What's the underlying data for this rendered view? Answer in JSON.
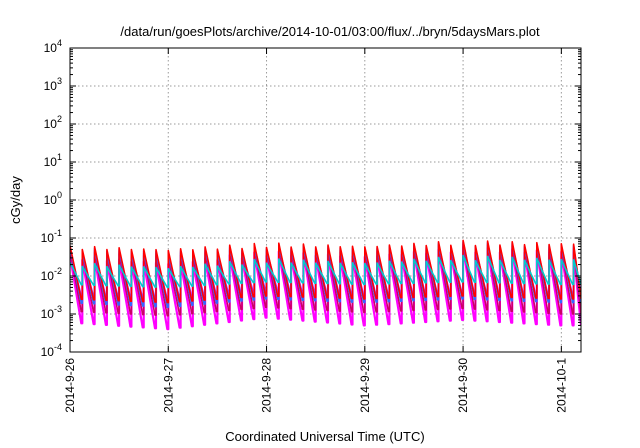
{
  "chart_data": {
    "type": "line",
    "title": "/data/run/goesPlots/archive/2014-10-01/03:00/flux/../bryn/5daysMars.plot",
    "xlabel": "Coordinated Universal Time (UTC)",
    "ylabel": "cGy/day",
    "yscale": "log",
    "ylim": [
      0.0001,
      10000
    ],
    "xlim": [
      "2014-09-26T00:00",
      "2014-10-01T04:48"
    ],
    "grid": true,
    "legend": "none",
    "y_ticks": [
      {
        "base": "10",
        "exp": "-4",
        "value": 0.0001
      },
      {
        "base": "10",
        "exp": "-3",
        "value": 0.001
      },
      {
        "base": "10",
        "exp": "-2",
        "value": 0.01
      },
      {
        "base": "10",
        "exp": "-1",
        "value": 0.1
      },
      {
        "base": "10",
        "exp": "0",
        "value": 1
      },
      {
        "base": "10",
        "exp": "1",
        "value": 10
      },
      {
        "base": "10",
        "exp": "2",
        "value": 100
      },
      {
        "base": "10",
        "exp": "3",
        "value": 1000
      },
      {
        "base": "10",
        "exp": "4",
        "value": 10000
      }
    ],
    "x_ticks": [
      {
        "label": "2014-9-26",
        "value": "2014-09-26T00:00"
      },
      {
        "label": "2014-9-27",
        "value": "2014-09-27T00:00"
      },
      {
        "label": "2014-9-28",
        "value": "2014-09-28T00:00"
      },
      {
        "label": "2014-9-29",
        "value": "2014-09-29T00:00"
      },
      {
        "label": "2014-9-30",
        "value": "2014-09-30T00:00"
      },
      {
        "label": "2014-10-1",
        "value": "2014-10-01T00:00"
      }
    ],
    "sawtooth_period_hours": 3,
    "series": [
      {
        "color": "#ff00ff",
        "values": [
          0.03,
          0.02,
          0.04,
          0.03,
          0.05,
          0.04
        ],
        "min_values": [
          0.0006,
          0.0004,
          0.0008,
          0.0005,
          0.0007,
          0.0005
        ]
      },
      {
        "color": "#cc0066",
        "values": [
          0.04,
          0.03,
          0.05,
          0.04,
          0.06,
          0.05
        ],
        "min_values": [
          0.0012,
          0.0009,
          0.0015,
          0.0011,
          0.0014,
          0.001
        ]
      },
      {
        "color": "#9933ff",
        "values": [
          0.045,
          0.035,
          0.055,
          0.045,
          0.065,
          0.055
        ],
        "min_values": [
          0.003,
          0.0025,
          0.004,
          0.003,
          0.0035,
          0.003
        ]
      },
      {
        "color": "#00cccc",
        "values": [
          0.02,
          0.015,
          0.025,
          0.02,
          0.03,
          0.025
        ],
        "min_values": [
          0.006,
          0.005,
          0.007,
          0.006,
          0.007,
          0.006
        ]
      },
      {
        "color": "#3366ff",
        "values": [
          0.05,
          0.04,
          0.06,
          0.05,
          0.07,
          0.06
        ],
        "min_values": [
          0.002,
          0.0015,
          0.0025,
          0.002,
          0.0025,
          0.002
        ]
      },
      {
        "color": "#ff0000",
        "values": [
          0.055,
          0.045,
          0.065,
          0.055,
          0.075,
          0.065
        ],
        "min_values": [
          0.0025,
          0.002,
          0.003,
          0.0025,
          0.003,
          0.0025
        ]
      }
    ],
    "series_value_times": [
      "2014-09-26T00:00",
      "2014-09-27T00:00",
      "2014-09-28T00:00",
      "2014-09-29T00:00",
      "2014-09-30T00:00",
      "2014-10-01T00:00"
    ]
  }
}
